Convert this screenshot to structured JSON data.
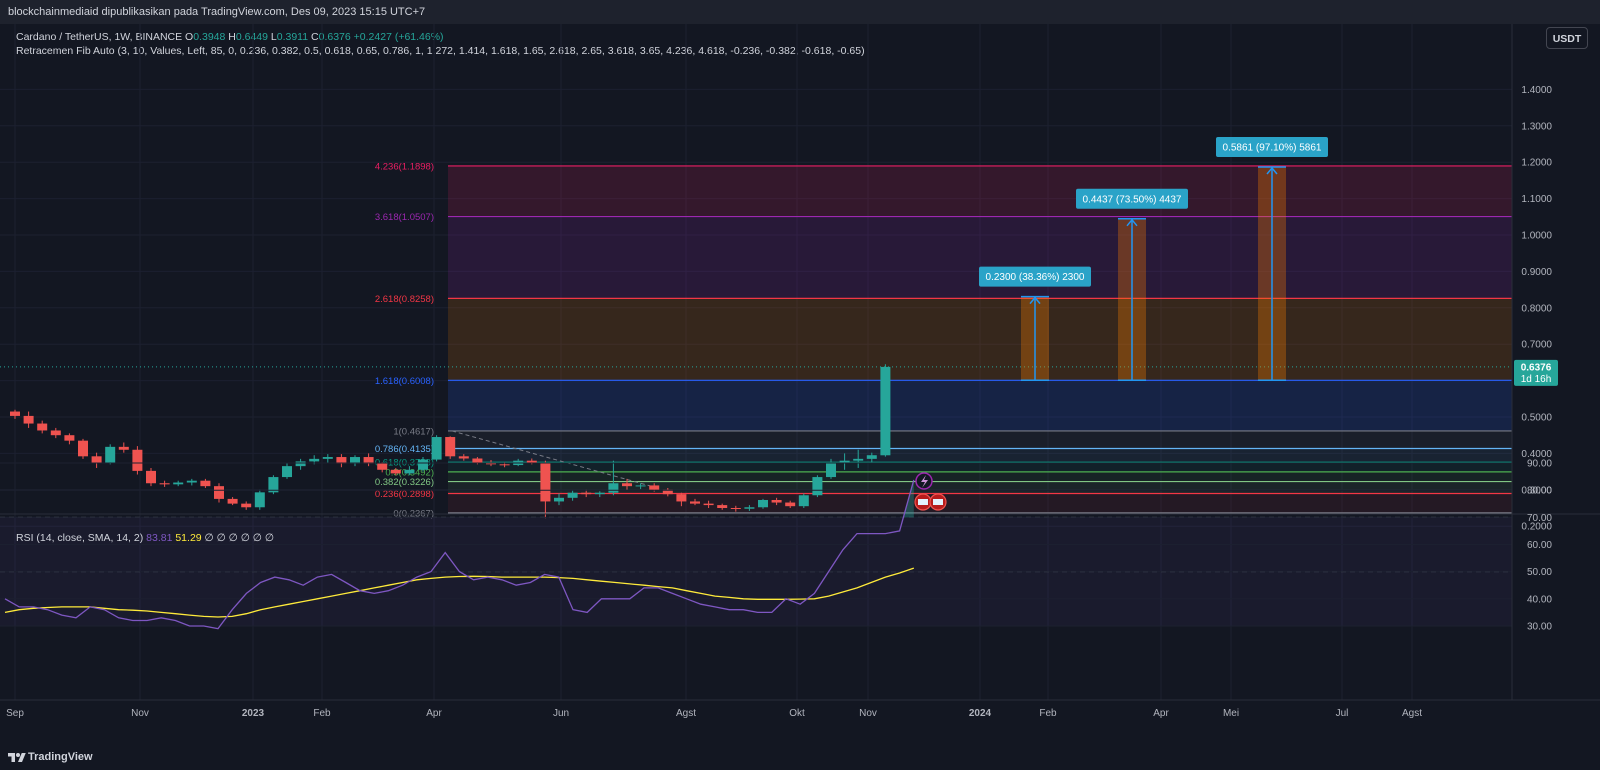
{
  "header": {
    "published": "blockchainmediaid dipublikasikan pada TradingView.com, Des 09, 2023 15:15 UTC+7"
  },
  "legend": {
    "symbol": "Cardano / TetherUS, 1W, BINANCE",
    "o_key": "O",
    "o_val": "0.3948",
    "h_key": "H",
    "h_val": "0.6449",
    "l_key": "L",
    "l_val": "0.3911",
    "c_key": "C",
    "c_val": "0.6376",
    "change": "+0.2427 (+61.46%)",
    "fib": "Retracemen Fib Auto (3, 10, Values, Left, 85, 0, 0.236, 0.382, 0.5, 0.618, 0.65, 0.786, 1, 1.272, 1.414, 1.618, 1.65, 2.618, 2.65, 3.618, 3.65, 4.236, 4.618, -0.236, -0.382, -0.618, -0.65)"
  },
  "rsi_legend": {
    "label": "RSI (14, close, SMA, 14, 2)",
    "rsi_value": "83.81",
    "sma_value": "51.29",
    "empties": "∅ ∅ ∅ ∅ ∅ ∅"
  },
  "currency_button": "USDT",
  "footer": {
    "brand": "TradingView"
  },
  "colors": {
    "background": "#131722",
    "up": "#26a69a",
    "down": "#ef5350",
    "rsi_line": "#7e57c2",
    "rsi_sma": "#ffeb3b",
    "measure": "#2196f3",
    "measure_label_bg": "#2aa3c8"
  },
  "chart_data": [
    {
      "type": "candlestick",
      "pair": "ADA/USDT",
      "timeframe": "1W",
      "y_axis": {
        "min": 0.2,
        "max": 1.4,
        "ticks": [
          "1.4000",
          "1.3000",
          "1.2000",
          "1.1000",
          "1.0000",
          "0.9000",
          "0.8000",
          "0.7000",
          "0.6000",
          "0.5000",
          "0.4000",
          "0.3000",
          "0.2000"
        ]
      },
      "x_axis": {
        "labels": [
          "Sep",
          "Nov",
          "2023",
          "Feb",
          "Apr",
          "Jun",
          "Agst",
          "Okt",
          "Nov",
          "2024",
          "Feb",
          "Apr",
          "Mei",
          "Jul",
          "Agst"
        ]
      },
      "candles": [
        [
          0.515,
          0.52,
          0.495,
          0.503
        ],
        [
          0.503,
          0.515,
          0.47,
          0.482
        ],
        [
          0.482,
          0.49,
          0.455,
          0.463
        ],
        [
          0.463,
          0.47,
          0.442,
          0.45
        ],
        [
          0.45,
          0.455,
          0.425,
          0.435
        ],
        [
          0.435,
          0.44,
          0.385,
          0.392
        ],
        [
          0.392,
          0.402,
          0.36,
          0.375
        ],
        [
          0.375,
          0.425,
          0.37,
          0.418
        ],
        [
          0.418,
          0.43,
          0.402,
          0.41
        ],
        [
          0.41,
          0.42,
          0.342,
          0.352
        ],
        [
          0.352,
          0.36,
          0.31,
          0.318
        ],
        [
          0.318,
          0.325,
          0.308,
          0.315
        ],
        [
          0.315,
          0.325,
          0.31,
          0.32
        ],
        [
          0.32,
          0.33,
          0.312,
          0.325
        ],
        [
          0.325,
          0.33,
          0.305,
          0.31
        ],
        [
          0.31,
          0.318,
          0.265,
          0.275
        ],
        [
          0.275,
          0.28,
          0.258,
          0.262
        ],
        [
          0.262,
          0.268,
          0.245,
          0.252
        ],
        [
          0.252,
          0.3,
          0.245,
          0.293
        ],
        [
          0.293,
          0.34,
          0.288,
          0.335
        ],
        [
          0.335,
          0.375,
          0.33,
          0.365
        ],
        [
          0.365,
          0.385,
          0.355,
          0.378
        ],
        [
          0.378,
          0.395,
          0.37,
          0.385
        ],
        [
          0.385,
          0.398,
          0.375,
          0.39
        ],
        [
          0.39,
          0.398,
          0.362,
          0.372
        ],
        [
          0.372,
          0.395,
          0.365,
          0.39
        ],
        [
          0.39,
          0.4,
          0.365,
          0.372
        ],
        [
          0.372,
          0.376,
          0.348,
          0.355
        ],
        [
          0.355,
          0.36,
          0.34,
          0.345
        ],
        [
          0.345,
          0.365,
          0.34,
          0.355
        ],
        [
          0.355,
          0.39,
          0.35,
          0.383
        ],
        [
          0.383,
          0.45,
          0.378,
          0.445
        ],
        [
          0.445,
          0.447,
          0.385,
          0.392
        ],
        [
          0.392,
          0.398,
          0.38,
          0.386
        ],
        [
          0.386,
          0.39,
          0.37,
          0.375
        ],
        [
          0.375,
          0.382,
          0.365,
          0.37
        ],
        [
          0.37,
          0.376,
          0.362,
          0.368
        ],
        [
          0.368,
          0.385,
          0.365,
          0.38
        ],
        [
          0.38,
          0.386,
          0.37,
          0.375
        ],
        [
          0.375,
          0.38,
          0.222,
          0.268
        ],
        [
          0.268,
          0.29,
          0.258,
          0.278
        ],
        [
          0.278,
          0.298,
          0.27,
          0.292
        ],
        [
          0.292,
          0.3,
          0.28,
          0.288
        ],
        [
          0.288,
          0.296,
          0.28,
          0.292
        ],
        [
          0.292,
          0.38,
          0.285,
          0.318
        ],
        [
          0.318,
          0.33,
          0.3,
          0.31
        ],
        [
          0.31,
          0.318,
          0.302,
          0.312
        ],
        [
          0.312,
          0.318,
          0.295,
          0.3
        ],
        [
          0.3,
          0.305,
          0.282,
          0.288
        ],
        [
          0.288,
          0.292,
          0.255,
          0.268
        ],
        [
          0.268,
          0.275,
          0.258,
          0.262
        ],
        [
          0.262,
          0.27,
          0.25,
          0.258
        ],
        [
          0.258,
          0.262,
          0.245,
          0.25
        ],
        [
          0.25,
          0.256,
          0.24,
          0.248
        ],
        [
          0.248,
          0.258,
          0.242,
          0.252
        ],
        [
          0.252,
          0.275,
          0.248,
          0.272
        ],
        [
          0.272,
          0.278,
          0.258,
          0.265
        ],
        [
          0.265,
          0.27,
          0.25,
          0.255
        ],
        [
          0.255,
          0.29,
          0.25,
          0.285
        ],
        [
          0.285,
          0.34,
          0.28,
          0.335
        ],
        [
          0.335,
          0.385,
          0.33,
          0.375
        ],
        [
          0.375,
          0.4,
          0.355,
          0.38
        ],
        [
          0.38,
          0.41,
          0.36,
          0.385
        ],
        [
          0.385,
          0.402,
          0.375,
          0.395
        ],
        [
          0.3948,
          0.6449,
          0.3911,
          0.6376
        ]
      ],
      "last_price_label": "0.6376",
      "countdown_label": "1d 16h",
      "fib_levels": [
        {
          "ratio": "0",
          "price": 0.2367,
          "label": "0(0.2367)",
          "color": "#787b86"
        },
        {
          "ratio": "0.236",
          "price": 0.2898,
          "label": "0.236(0.2898)",
          "color": "#f23645"
        },
        {
          "ratio": "0.382",
          "price": 0.3226,
          "label": "0.382(0.3226)",
          "color": "#81c784"
        },
        {
          "ratio": "0.5",
          "price": 0.3492,
          "label": "0.5(0.3492)",
          "color": "#4caf50"
        },
        {
          "ratio": "0.618",
          "price": 0.3758,
          "label": "0.618(0.3758)",
          "color": "#089981"
        },
        {
          "ratio": "0.786",
          "price": 0.4135,
          "label": "0.786(0.4135)",
          "color": "#64b5f6"
        },
        {
          "ratio": "1",
          "price": 0.4617,
          "label": "1(0.4617)",
          "color": "#787b86"
        },
        {
          "ratio": "1.618",
          "price": 0.6008,
          "label": "1.618(0.6008)",
          "color": "#2962ff"
        },
        {
          "ratio": "2.618",
          "price": 0.8258,
          "label": "2.618(0.8258)",
          "color": "#f23645"
        },
        {
          "ratio": "3.618",
          "price": 1.0507,
          "label": "3.618(1.0507)",
          "color": "#9c27b0"
        },
        {
          "ratio": "4.236",
          "price": 1.1898,
          "label": "4.236(1.1898)",
          "color": "#e91e63"
        }
      ],
      "measurements": [
        {
          "label": "0.2300 (38.36%) 2300",
          "from": 0.6008,
          "to": 0.8308
        },
        {
          "label": "0.4437 (73.50%) 4437",
          "from": 0.6008,
          "to": 1.0445
        },
        {
          "label": "0.5861 (97.10%) 5861",
          "from": 0.6008,
          "to": 1.1869
        }
      ]
    },
    {
      "type": "line",
      "indicator": "RSI",
      "y_axis": {
        "min": 25,
        "max": 90,
        "ticks": [
          "90.00",
          "80.00",
          "70.00",
          "60.00",
          "50.00",
          "40.00",
          "30.00"
        ]
      },
      "bands": [
        70,
        50,
        30
      ],
      "series": [
        {
          "name": "RSI",
          "values": [
            40,
            37,
            37,
            36,
            34,
            33,
            37,
            36,
            33,
            32,
            32,
            33,
            32,
            30,
            30,
            29,
            36,
            42,
            46,
            48,
            47,
            45,
            48,
            49,
            46,
            43,
            42,
            43,
            45,
            48,
            50,
            57,
            50,
            47,
            48,
            47,
            45,
            46,
            49,
            48,
            36,
            35,
            40,
            40,
            40,
            44,
            44,
            42,
            40,
            38,
            37,
            36,
            36,
            35,
            35,
            40,
            38,
            42,
            50,
            58,
            64,
            64,
            64,
            65,
            83.81
          ]
        },
        {
          "name": "SMA",
          "values": [
            35,
            36,
            36.5,
            36.8,
            37,
            37,
            37,
            36.5,
            36,
            35.8,
            35.5,
            35,
            34.5,
            34,
            33.5,
            33.3,
            33.5,
            34.5,
            36,
            37,
            38,
            39,
            40,
            41,
            42,
            43,
            44,
            45,
            46,
            47,
            47.5,
            48,
            48.2,
            48.3,
            48.2,
            48,
            48,
            48,
            48,
            47.8,
            47.5,
            47,
            46.5,
            46,
            45.5,
            45,
            44.5,
            44,
            43,
            42,
            41,
            40.5,
            40,
            39.8,
            39.8,
            39.8,
            39.9,
            40,
            41,
            42.5,
            44,
            46,
            48,
            49.5,
            51.29
          ]
        }
      ]
    }
  ]
}
